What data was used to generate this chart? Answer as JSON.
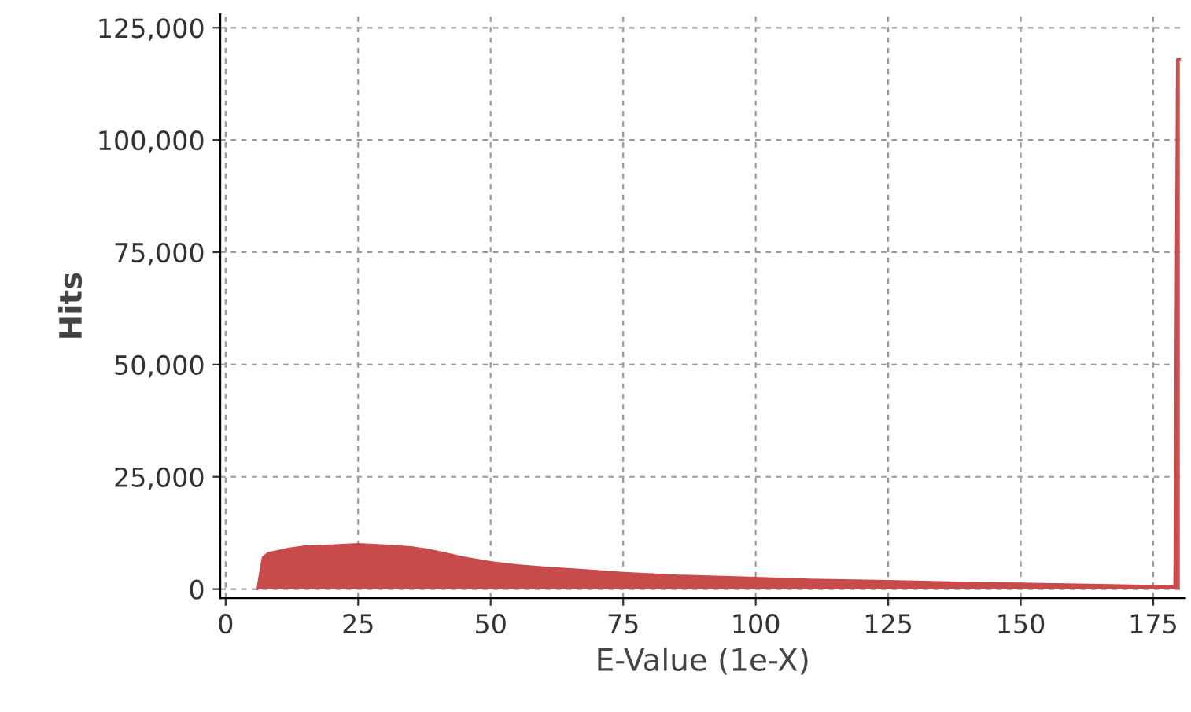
{
  "chart_data": {
    "type": "area",
    "xlabel": "E-Value (1e-X)",
    "ylabel": "Hits",
    "x": [
      6,
      7,
      8,
      10,
      12,
      15,
      20,
      25,
      30,
      35,
      38,
      40,
      45,
      50,
      55,
      60,
      70,
      75,
      85,
      100,
      110,
      125,
      140,
      150,
      165,
      175,
      179,
      179.5,
      180
    ],
    "series": [
      {
        "color": "#c84b4b",
        "values": [
          0,
          7000,
          8000,
          8500,
          9000,
          9500,
          9700,
          10000,
          9700,
          9300,
          8800,
          8300,
          7000,
          6000,
          5300,
          4800,
          4000,
          3600,
          3000,
          2500,
          2100,
          1800,
          1400,
          1200,
          900,
          700,
          700,
          118000,
          118000
        ]
      }
    ],
    "xlim": [
      -1,
      181
    ],
    "ylim": [
      -2000,
      128000
    ],
    "xticks": [
      0,
      25,
      50,
      75,
      100,
      125,
      150,
      175
    ],
    "yticks": [
      {
        "value": 0,
        "label": "0"
      },
      {
        "value": 25000,
        "label": "25,000"
      },
      {
        "value": 50000,
        "label": "50,000"
      },
      {
        "value": 75000,
        "label": "75,000"
      },
      {
        "value": 100000,
        "label": "100,000"
      },
      {
        "value": 125000,
        "label": "125,000"
      }
    ],
    "grid": true
  }
}
